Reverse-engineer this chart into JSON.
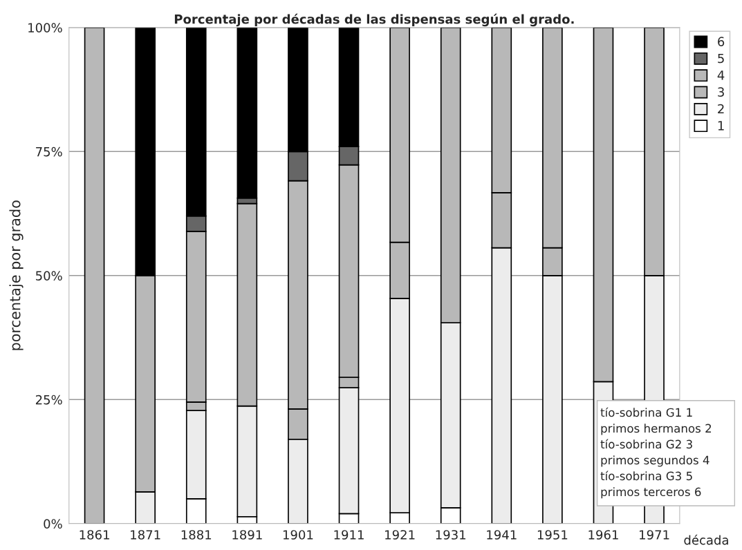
{
  "chart_data": {
    "type": "bar",
    "stacked": true,
    "title": "Porcentaje por décadas de las dispensas según el grado.",
    "xlabel": "década",
    "ylabel": "porcentaje por grado",
    "categories": [
      "1861",
      "1871",
      "1881",
      "1891",
      "1901",
      "1911",
      "1921",
      "1931",
      "1941",
      "1951",
      "1961",
      "1971"
    ],
    "series": [
      {
        "name": "1",
        "color": "#ffffff",
        "values": [
          null,
          null,
          5.0,
          1.4,
          null,
          2.0,
          2.2,
          3.2,
          null,
          null,
          null,
          null
        ]
      },
      {
        "name": "2",
        "color": "#ececec",
        "values": [
          null,
          6.4,
          17.8,
          22.3,
          17.0,
          25.4,
          43.2,
          37.3,
          55.6,
          50,
          28.6,
          50
        ]
      },
      {
        "name": "3",
        "color": "#b8b8b8",
        "values": [
          null,
          null,
          1.7,
          null,
          6.1,
          2.1,
          11.3,
          null,
          11.1,
          5.6,
          null,
          null
        ]
      },
      {
        "name": "4",
        "color": "#b8b8b8",
        "values": [
          100,
          43.6,
          34.4,
          40.8,
          46.0,
          42.8,
          43.3,
          59.5,
          33.3,
          44.4,
          71.4,
          50
        ]
      },
      {
        "name": "5",
        "color": "#666666",
        "values": [
          null,
          null,
          3.1,
          1.1,
          5.9,
          3.7,
          null,
          null,
          null,
          null,
          null,
          null
        ]
      },
      {
        "name": "6",
        "color": "#000000",
        "values": [
          null,
          50,
          38.0,
          34.4,
          25.0,
          24.0,
          null,
          null,
          null,
          null,
          null,
          null
        ]
      }
    ],
    "ylim": [
      0,
      100
    ],
    "yticks": [
      {
        "value": 0,
        "label": "0%"
      },
      {
        "value": 25,
        "label": "25%"
      },
      {
        "value": 50,
        "label": "50%"
      },
      {
        "value": 75,
        "label": "75%"
      },
      {
        "value": 100,
        "label": "100%"
      }
    ],
    "grid": "y",
    "legend": "top right",
    "annotations": [
      "tío-sobrina G1 1",
      "primos hermanos 2",
      "tío-sobrina G2 3",
      "primos segundos 4",
      "tío-sobrina G3 5",
      "primos terceros 6"
    ]
  }
}
